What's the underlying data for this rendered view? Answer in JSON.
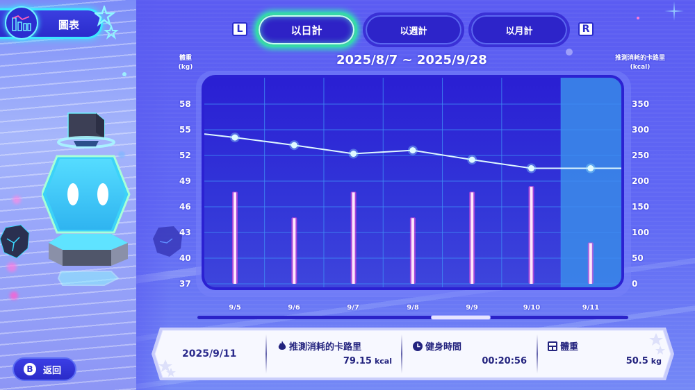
{
  "header": {
    "title": "圖表",
    "icon": "chart-icon"
  },
  "tabs": {
    "left_key": "L",
    "right_key": "R",
    "items": [
      {
        "label": "以日計",
        "active": true
      },
      {
        "label": "以週計",
        "active": false
      },
      {
        "label": "以月計",
        "active": false
      }
    ]
  },
  "chart": {
    "date_range": "2025/8/7 ~ 2025/9/28",
    "left_axis_title_line1": "體重",
    "left_axis_title_line2": "(kg)",
    "right_axis_title_line1": "推測消耗的卡路里",
    "right_axis_title_line2": "(kcal)",
    "left_ticks": [
      "58",
      "55",
      "52",
      "49",
      "46",
      "43",
      "40",
      "37"
    ],
    "right_ticks": [
      "350",
      "300",
      "250",
      "200",
      "150",
      "100",
      "50",
      "0"
    ],
    "x_labels": [
      "9/5",
      "9/6",
      "9/7",
      "9/8",
      "9/9",
      "9/10",
      "9/11"
    ],
    "selected_index": 6
  },
  "chart_data": {
    "type": "bar",
    "title": "2025/8/7 ~ 2025/9/28",
    "categories": [
      "9/5",
      "9/6",
      "9/7",
      "9/8",
      "9/9",
      "9/10",
      "9/11"
    ],
    "series": [
      {
        "name": "推測消耗的卡路里 (kcal)",
        "type": "bar",
        "axis": "right",
        "values": [
          178,
          128,
          178,
          128,
          178,
          189,
          79.15
        ]
      },
      {
        "name": "體重 (kg)",
        "type": "line",
        "axis": "left",
        "values": [
          54.1,
          53.2,
          52.2,
          52.6,
          51.5,
          50.5,
          50.5
        ]
      }
    ],
    "xlabel": "",
    "ylabel": "體重 (kg)",
    "ylabel_right": "推測消耗的卡路里 (kcal)",
    "ylim": [
      37,
      58
    ],
    "ylim_right": [
      0,
      350
    ],
    "yticks": [
      37,
      40,
      43,
      46,
      49,
      52,
      55,
      58
    ],
    "yticks_right": [
      0,
      50,
      100,
      150,
      200,
      250,
      300,
      350
    ],
    "grid": true,
    "legend": "none",
    "highlighted_category": "9/11"
  },
  "details": {
    "date": "2025/9/11",
    "calories_label": "推測消耗的卡路里",
    "calories_value": "79.15",
    "calories_unit": "kcal",
    "time_label": "健身時間",
    "time_value": "00:20:56",
    "weight_label": "體重",
    "weight_value": "50.5",
    "weight_unit": "kg"
  },
  "back_button": {
    "key": "B",
    "label": "返回"
  },
  "colors": {
    "background": "#5a5cf0",
    "chart_bg": "#2a22cc",
    "grid": "#3f8cf5",
    "bar": "#ff4fd8",
    "line": "#dff8ff",
    "selected_column": "#3b86e8",
    "active_tab_glow": "#2fe4b4",
    "header_glow": "#3ee7ff"
  }
}
